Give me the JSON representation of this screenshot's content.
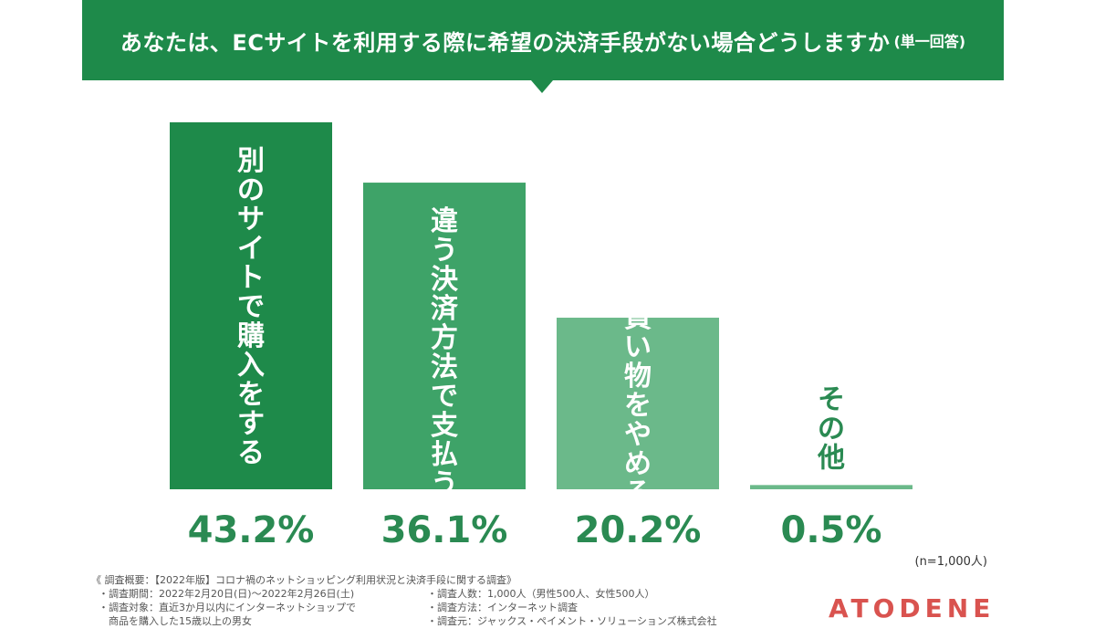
{
  "header": {
    "title": "あなたは、ECサイトを利用する際に希望の決済手段がない場合どうしますか",
    "note": "(単一回答)",
    "background": "#1e8a4a"
  },
  "chart_data": {
    "type": "bar",
    "categories": [
      "別のサイトで購入をする",
      "違う決済方法で支払う",
      "買い物をやめる",
      "その他"
    ],
    "values": [
      43.2,
      36.1,
      20.2,
      0.5
    ],
    "value_labels": [
      "43.2%",
      "36.1%",
      "20.2%",
      "0.5%"
    ],
    "colors": [
      "#1e8a4a",
      "#3ea368",
      "#6bb98a",
      "#6bb98a"
    ],
    "label_color": "#2a8a52",
    "ylim": [
      0,
      43.2
    ],
    "grid": false,
    "legend": "none"
  },
  "sample_size": "(n=1,000人)",
  "survey": {
    "title": "《 調査概要：【2022年版】コロナ禍のネットショッピング利用状況と決済手段に関する調査》",
    "items_left": [
      "・調査期間：2022年2月20日(日)～2022年2月26日(土)",
      "・調査対象：直近3か月以内にインターネットショップで",
      "　商品を購入した15歳以上の男女"
    ],
    "items_right": [
      "・調査人数：1,000人（男性500人、女性500人）",
      "・調査方法：インターネット調査",
      "・調査元：ジャックス・ペイメント・ソリューションズ株式会社"
    ]
  },
  "logo": {
    "text": "ATODENE",
    "color": "#d9534f"
  }
}
